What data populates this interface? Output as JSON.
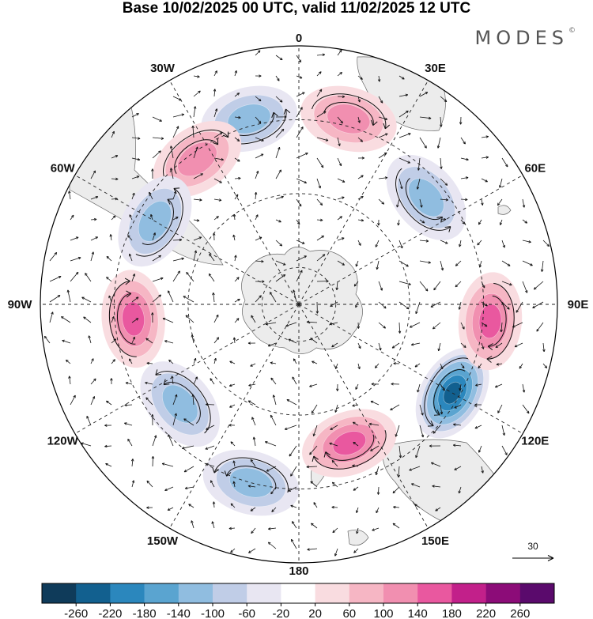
{
  "title": "Base 10/02/2025 00 UTC, valid 11/02/2025 12 UTC",
  "brand": "MODES",
  "brand_mark": "©",
  "longitude_labels": [
    "0",
    "30E",
    "60E",
    "90E",
    "120E",
    "150E",
    "180",
    "150W",
    "120W",
    "90W",
    "60W",
    "30W"
  ],
  "reference_vector_label": "30",
  "colorbar": {
    "levels": [
      "-260",
      "-220",
      "-180",
      "-140",
      "-100",
      "-60",
      "-20",
      "20",
      "60",
      "100",
      "140",
      "180",
      "220",
      "260"
    ],
    "colors": [
      "#0f3b5a",
      "#12608f",
      "#2b87bd",
      "#5aa4d0",
      "#90bde0",
      "#c0cde7",
      "#e8e6f2",
      "#ffffff",
      "#f9dce0",
      "#f6b6c4",
      "#f18fb0",
      "#e9589f",
      "#c2208a",
      "#8c0c78",
      "#5a0a6c"
    ]
  },
  "land_color": "#ececec",
  "pressure_anomalies": [
    {
      "sign": "negative",
      "strength": 2,
      "lat": -38,
      "lon": -15
    },
    {
      "sign": "positive",
      "strength": 2,
      "lat": -42,
      "lon": -35
    },
    {
      "sign": "negative",
      "strength": 2,
      "lat": -45,
      "lon": -60
    },
    {
      "sign": "positive",
      "strength": 3,
      "lat": -45,
      "lon": -95
    },
    {
      "sign": "negative",
      "strength": 2,
      "lat": -48,
      "lon": -130
    },
    {
      "sign": "negative",
      "strength": 2,
      "lat": -40,
      "lon": -165
    },
    {
      "sign": "positive",
      "strength": 3,
      "lat": -50,
      "lon": 160
    },
    {
      "sign": "negative",
      "strength": 5,
      "lat": -42,
      "lon": 120
    },
    {
      "sign": "positive",
      "strength": 3,
      "lat": -38,
      "lon": 95
    },
    {
      "sign": "negative",
      "strength": 2,
      "lat": -45,
      "lon": 50
    },
    {
      "sign": "positive",
      "strength": 2,
      "lat": -38,
      "lon": 15
    }
  ]
}
